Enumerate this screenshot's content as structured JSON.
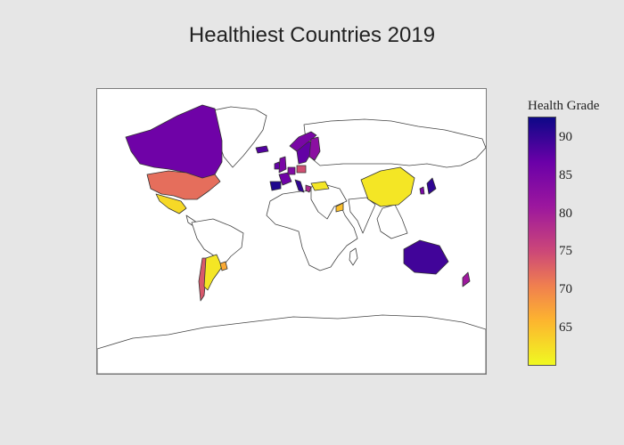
{
  "title": "Healthiest Countries 2019",
  "colorbar": {
    "title": "Health Grade",
    "ticks": [
      "90",
      "85",
      "80",
      "75",
      "70",
      "65"
    ],
    "range": [
      60.5,
      93
    ],
    "colorscale": [
      "#f0f921",
      "#fdb42f",
      "#f07f4f",
      "#cc4778",
      "#9c179e",
      "#6a00a8",
      "#0d0887"
    ]
  },
  "colors": {
    "background": "#e6e6e6",
    "land": "#ffffff",
    "border": "#444444"
  },
  "chart_data": {
    "type": "choropleth",
    "title": "Healthiest Countries 2019",
    "colorbar_title": "Health Grade",
    "scale_range": [
      60.5,
      93
    ],
    "regions": [
      {
        "country": "Canada",
        "value": 87
      },
      {
        "country": "United States",
        "value": 73
      },
      {
        "country": "Mexico",
        "value": 63
      },
      {
        "country": "Chile",
        "value": 75
      },
      {
        "country": "Argentina",
        "value": 62
      },
      {
        "country": "Uruguay",
        "value": 67
      },
      {
        "country": "Norway",
        "value": 86
      },
      {
        "country": "Sweden",
        "value": 88
      },
      {
        "country": "Finland",
        "value": 84
      },
      {
        "country": "Iceland",
        "value": 89
      },
      {
        "country": "Ireland",
        "value": 88
      },
      {
        "country": "United Kingdom",
        "value": 86
      },
      {
        "country": "France",
        "value": 87
      },
      {
        "country": "Spain",
        "value": 92
      },
      {
        "country": "Italy",
        "value": 91
      },
      {
        "country": "Germany",
        "value": 85
      },
      {
        "country": "Poland",
        "value": 76
      },
      {
        "country": "Greece",
        "value": 80
      },
      {
        "country": "Kazakhstan",
        "value": 62
      },
      {
        "country": "Oman",
        "value": 65
      },
      {
        "country": "China",
        "value": 62
      },
      {
        "country": "Japan",
        "value": 91
      },
      {
        "country": "South Korea",
        "value": 86
      },
      {
        "country": "Australia",
        "value": 90
      },
      {
        "country": "New Zealand",
        "value": 82
      }
    ]
  }
}
